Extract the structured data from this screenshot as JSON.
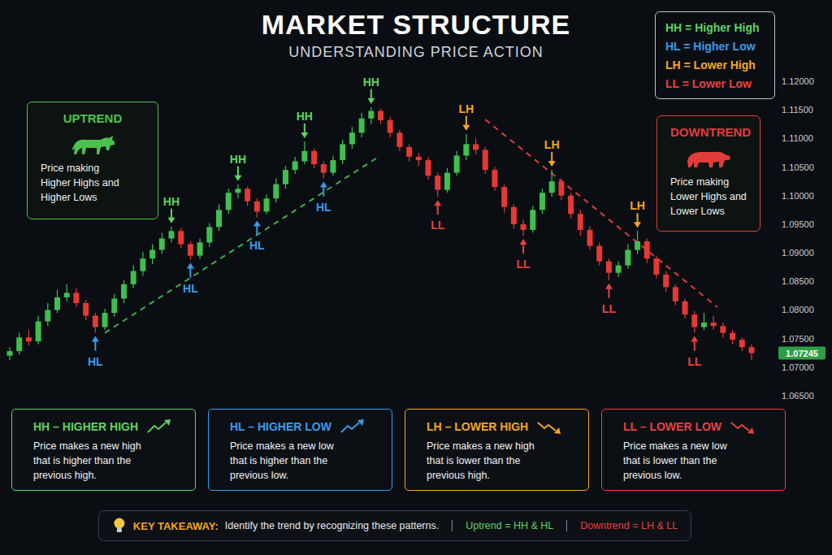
{
  "header": {
    "title": "MARKET STRUCTURE",
    "subtitle": "UNDERSTANDING PRICE ACTION"
  },
  "chart_data": {
    "type": "candlestick",
    "ylim": [
      1.065,
      1.12
    ],
    "yticks": [
      {
        "value": 1.065,
        "label": "1.06500"
      },
      {
        "value": 1.07,
        "label": "1.07000"
      },
      {
        "value": 1.075,
        "label": "1.07500"
      },
      {
        "value": 1.08,
        "label": "1.08000"
      },
      {
        "value": 1.085,
        "label": "1.08500"
      },
      {
        "value": 1.09,
        "label": "1.09000"
      },
      {
        "value": 1.095,
        "label": "1.09500"
      },
      {
        "value": 1.1,
        "label": "1.10000"
      },
      {
        "value": 1.105,
        "label": "1.10500"
      },
      {
        "value": 1.11,
        "label": "1.11000"
      },
      {
        "value": 1.115,
        "label": "1.11500"
      },
      {
        "value": 1.12,
        "label": "1.12000"
      }
    ],
    "grid": false,
    "open": [
      1.072,
      1.0728,
      1.0752,
      1.0745,
      1.078,
      1.08,
      1.0822,
      1.083,
      1.0812,
      1.079,
      1.077,
      1.0795,
      1.082,
      1.0845,
      1.0868,
      1.089,
      1.0905,
      1.0925,
      1.0938,
      1.0915,
      1.0895,
      1.0918,
      1.0945,
      1.0975,
      1.1005,
      1.1012,
      1.099,
      1.0972,
      1.0995,
      1.102,
      1.1045,
      1.106,
      1.1078,
      1.1055,
      1.104,
      1.1062,
      1.109,
      1.111,
      1.1135,
      1.1148,
      1.1132,
      1.111,
      1.1085,
      1.1068,
      1.1062,
      1.1035,
      1.101,
      1.104,
      1.107,
      1.109,
      1.108,
      1.1045,
      1.1015,
      1.098,
      1.095,
      1.094,
      1.0975,
      1.1005,
      1.1025,
      1.1,
      1.0968,
      1.094,
      1.0912,
      1.0885,
      1.0865,
      1.0878,
      1.0905,
      1.092,
      1.089,
      1.0862,
      1.084,
      1.0815,
      1.0792,
      1.077,
      1.0778,
      1.0772,
      1.076,
      1.0748,
      1.0735
    ],
    "high": [
      1.0735,
      1.076,
      1.0765,
      1.079,
      1.0812,
      1.0835,
      1.0845,
      1.0838,
      1.0818,
      1.0795,
      1.0802,
      1.0828,
      1.0852,
      1.0878,
      1.0902,
      1.0915,
      1.0935,
      1.0946,
      1.0944,
      1.092,
      1.0925,
      1.0952,
      1.0985,
      1.1012,
      1.102,
      1.1016,
      1.0995,
      1.1002,
      1.103,
      1.1052,
      1.1068,
      1.1095,
      1.1082,
      1.106,
      1.107,
      1.1098,
      1.112,
      1.1145,
      1.1155,
      1.1152,
      1.1138,
      1.1115,
      1.109,
      1.1075,
      1.1068,
      1.104,
      1.1048,
      1.1078,
      1.1108,
      1.11,
      1.1085,
      1.105,
      1.102,
      1.0985,
      1.0958,
      1.0982,
      1.1012,
      1.1045,
      1.103,
      1.1005,
      1.0975,
      1.0946,
      1.0918,
      1.089,
      1.0885,
      1.0915,
      1.0938,
      1.0925,
      1.0895,
      1.0868,
      1.0845,
      1.082,
      1.0798,
      1.0795,
      1.079,
      1.0778,
      1.0765,
      1.0752,
      1.074
    ],
    "low": [
      1.0712,
      1.0722,
      1.0738,
      1.074,
      1.0772,
      1.0795,
      1.0815,
      1.0805,
      1.0782,
      1.076,
      1.0765,
      1.0788,
      1.0812,
      1.0838,
      1.086,
      1.088,
      1.0898,
      1.0918,
      1.0908,
      1.0888,
      1.089,
      1.091,
      1.0938,
      1.0968,
      1.0995,
      1.0982,
      1.0962,
      1.0968,
      1.0988,
      1.1012,
      1.1038,
      1.1055,
      1.1048,
      1.103,
      1.1035,
      1.1055,
      1.1082,
      1.1102,
      1.1125,
      1.1125,
      1.1102,
      1.1078,
      1.106,
      1.1052,
      1.1028,
      1.0998,
      1.1005,
      1.1035,
      1.1062,
      1.1072,
      1.1038,
      1.1008,
      1.097,
      1.0942,
      1.093,
      1.0935,
      1.0968,
      1.0998,
      1.0992,
      1.096,
      1.093,
      1.0905,
      1.0878,
      1.0852,
      1.0858,
      1.0872,
      1.0898,
      1.0882,
      1.0855,
      1.0832,
      1.0808,
      1.0785,
      1.076,
      1.0765,
      1.0765,
      1.0752,
      1.074,
      1.0728,
      1.0712
    ],
    "close": [
      1.0728,
      1.0752,
      1.0745,
      1.078,
      1.08,
      1.0822,
      1.083,
      1.0812,
      1.079,
      1.077,
      1.0795,
      1.082,
      1.0845,
      1.0868,
      1.089,
      1.0905,
      1.0925,
      1.0938,
      1.0915,
      1.0895,
      1.0918,
      1.0945,
      1.0975,
      1.1005,
      1.1012,
      1.099,
      1.0972,
      1.0995,
      1.102,
      1.1045,
      1.106,
      1.1078,
      1.1055,
      1.104,
      1.1062,
      1.109,
      1.111,
      1.1135,
      1.1148,
      1.1132,
      1.111,
      1.1085,
      1.1068,
      1.1062,
      1.1035,
      1.101,
      1.104,
      1.107,
      1.109,
      1.108,
      1.1045,
      1.1015,
      1.098,
      1.095,
      1.094,
      1.0975,
      1.1005,
      1.1025,
      1.1,
      1.0968,
      1.094,
      1.0912,
      1.0885,
      1.0865,
      1.0878,
      1.0905,
      1.092,
      1.089,
      1.0862,
      1.084,
      1.0815,
      1.0792,
      1.077,
      1.0778,
      1.0772,
      1.076,
      1.0748,
      1.0735,
      1.07245
    ],
    "annotations": [
      {
        "text": "HL",
        "x": 9,
        "y": 1.076,
        "color": "#3a9ae8"
      },
      {
        "text": "HH",
        "x": 17,
        "y": 1.0946,
        "color": "#5fd35f"
      },
      {
        "text": "HL",
        "x": 19,
        "y": 1.0888,
        "color": "#3a9ae8"
      },
      {
        "text": "HH",
        "x": 24,
        "y": 1.102,
        "color": "#5fd35f"
      },
      {
        "text": "HL",
        "x": 26,
        "y": 1.0962,
        "color": "#3a9ae8"
      },
      {
        "text": "HH",
        "x": 31,
        "y": 1.1095,
        "color": "#5fd35f"
      },
      {
        "text": "HL",
        "x": 33,
        "y": 1.103,
        "color": "#3a9ae8"
      },
      {
        "text": "HH",
        "x": 38,
        "y": 1.1155,
        "color": "#5fd35f"
      },
      {
        "text": "LL",
        "x": 45,
        "y": 1.0998,
        "color": "#e84040"
      },
      {
        "text": "LH",
        "x": 48,
        "y": 1.1108,
        "color": "#f5a524"
      },
      {
        "text": "LL",
        "x": 54,
        "y": 1.093,
        "color": "#e84040"
      },
      {
        "text": "LH",
        "x": 57,
        "y": 1.1045,
        "color": "#f5a524"
      },
      {
        "text": "LL",
        "x": 63,
        "y": 1.0852,
        "color": "#e84040"
      },
      {
        "text": "LH",
        "x": 66,
        "y": 1.0938,
        "color": "#f5a524"
      },
      {
        "text": "LL",
        "x": 72,
        "y": 1.076,
        "color": "#e84040"
      }
    ],
    "trend_lines": [
      {
        "x": [
          10,
          38.5
        ],
        "y": [
          1.076,
          1.1065
        ],
        "color": "#3fae49",
        "line_style": "dashed"
      },
      {
        "x": [
          50,
          74.4
        ],
        "y": [
          1.1133,
          1.0805
        ],
        "color": "#e23b3b",
        "line_style": "dashed"
      }
    ]
  },
  "legend_box": {
    "items": [
      {
        "text": "HH = Higher High",
        "color": "#5fd35f"
      },
      {
        "text": "HL = Higher Low",
        "color": "#3a9ae8"
      },
      {
        "text": "LH = Lower High",
        "color": "#f5a524"
      },
      {
        "text": "LL = Lower Low",
        "color": "#e84040"
      }
    ]
  },
  "trend_boxes": [
    {
      "title": "UPTREND",
      "text": "Price making Higher Highs and Higher Lows",
      "color": "#4cc24c"
    },
    {
      "title": "DOWNTREND",
      "text": "Price making Lower Highs and Lower Lows",
      "color": "#e23b3b"
    }
  ],
  "definitions": [
    {
      "title": "HH – HIGHER HIGH",
      "text": "Price makes a new high that is higher than the previous high.",
      "color": "#5fd35f"
    },
    {
      "title": "HL – HIGHER LOW",
      "text": "Price makes a new low that is higher than the previous low.",
      "color": "#3a9ae8"
    },
    {
      "title": "LH – LOWER HIGH",
      "text": "Price makes a new high that is lower than the previous high.",
      "color": "#f5a524"
    },
    {
      "title": "LL – LOWER LOW",
      "text": "Price makes a new low that is lower than the previous low.",
      "color": "#e84040"
    }
  ],
  "takeaway": {
    "label": "KEY TAKEAWAY:",
    "text": "Identify the trend by recognizing these patterns.",
    "uptrend": "Uptrend = HH & HL",
    "downtrend": "Downtrend = LH & LL"
  }
}
